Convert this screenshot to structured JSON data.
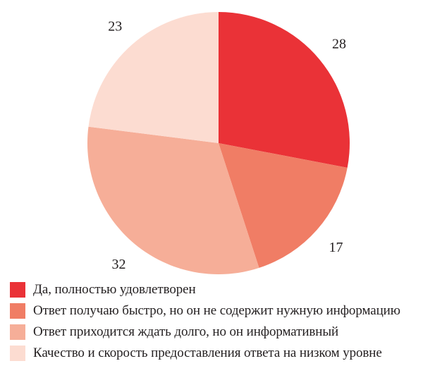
{
  "chart_data": {
    "type": "pie",
    "title": "",
    "slices": [
      {
        "label": "Да, полностью удовлетворен",
        "value": 28,
        "value_label": "28",
        "color": "#ea3237"
      },
      {
        "label": "Ответ получаю быстро, но он не содержит нужную информацию",
        "value": 17,
        "value_label": "17",
        "color": "#f07d65"
      },
      {
        "label": "Ответ приходится ждать долго, но он информативный",
        "value": 32,
        "value_label": "32",
        "color": "#f6ae98"
      },
      {
        "label": "Качество и скорость предоставления ответа на низком уровне",
        "value": 23,
        "value_label": "23",
        "color": "#fcdcd1"
      }
    ],
    "start": "12 o'clock",
    "direction": "clockwise",
    "legend_position": "bottom",
    "data_labels": "outside"
  }
}
